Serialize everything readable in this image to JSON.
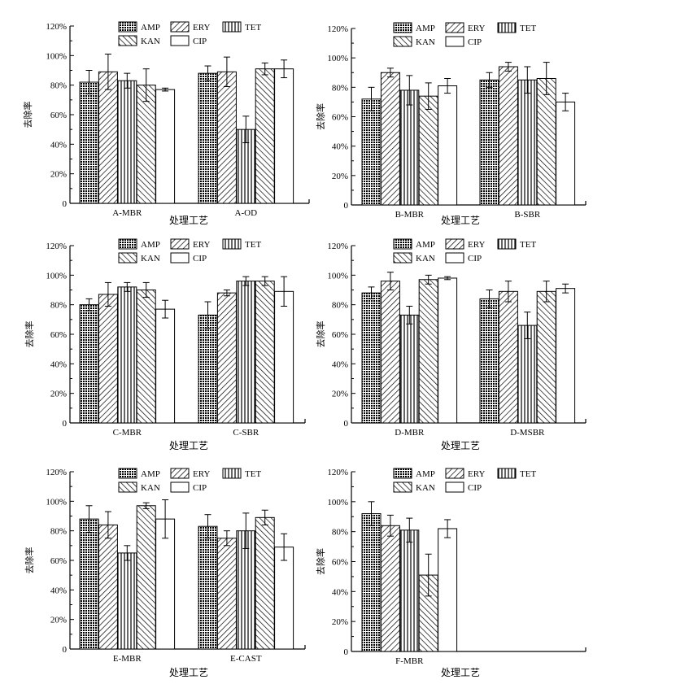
{
  "series_names": [
    "AMP",
    "ERY",
    "TET",
    "KAN",
    "CIP"
  ],
  "y_ticks": [
    "0",
    "20%",
    "40%",
    "60%",
    "80%",
    "100%",
    "120%"
  ],
  "chart_data": [
    {
      "type": "bar",
      "panel": "A",
      "categories": [
        "A-MBR",
        "A-OD"
      ],
      "series": [
        {
          "name": "AMP",
          "values": [
            82,
            88
          ],
          "errors": [
            8,
            5
          ]
        },
        {
          "name": "ERY",
          "values": [
            89,
            89
          ],
          "errors": [
            12,
            10
          ]
        },
        {
          "name": "TET",
          "values": [
            83,
            50
          ],
          "errors": [
            5,
            9
          ]
        },
        {
          "name": "KAN",
          "values": [
            80,
            91
          ],
          "errors": [
            11,
            4
          ]
        },
        {
          "name": "CIP",
          "values": [
            77,
            91
          ],
          "errors": [
            1,
            6
          ]
        }
      ],
      "xlabel": "处理工艺",
      "ylabel": "去除率",
      "ylim": [
        0,
        120
      ]
    },
    {
      "type": "bar",
      "panel": "B",
      "categories": [
        "B-MBR",
        "B-SBR"
      ],
      "series": [
        {
          "name": "AMP",
          "values": [
            72,
            85
          ],
          "errors": [
            8,
            5
          ]
        },
        {
          "name": "ERY",
          "values": [
            90,
            94
          ],
          "errors": [
            3,
            3
          ]
        },
        {
          "name": "TET",
          "values": [
            78,
            85
          ],
          "errors": [
            10,
            9
          ]
        },
        {
          "name": "KAN",
          "values": [
            74,
            86
          ],
          "errors": [
            9,
            11
          ]
        },
        {
          "name": "CIP",
          "values": [
            81,
            70
          ],
          "errors": [
            5,
            6
          ]
        }
      ],
      "xlabel": "处理工艺",
      "ylabel": "去除率",
      "ylim": [
        0,
        120
      ]
    },
    {
      "type": "bar",
      "panel": "C",
      "categories": [
        "C-MBR",
        "C-SBR"
      ],
      "series": [
        {
          "name": "AMP",
          "values": [
            80,
            73
          ],
          "errors": [
            4,
            9
          ]
        },
        {
          "name": "ERY",
          "values": [
            87,
            88
          ],
          "errors": [
            8,
            2
          ]
        },
        {
          "name": "TET",
          "values": [
            92,
            96
          ],
          "errors": [
            3,
            3
          ]
        },
        {
          "name": "KAN",
          "values": [
            90,
            96
          ],
          "errors": [
            5,
            3
          ]
        },
        {
          "name": "CIP",
          "values": [
            77,
            89
          ],
          "errors": [
            6,
            10
          ]
        }
      ],
      "xlabel": "处理工艺",
      "ylabel": "去除率",
      "ylim": [
        0,
        120
      ]
    },
    {
      "type": "bar",
      "panel": "D",
      "categories": [
        "D-MBR",
        "D-MSBR"
      ],
      "series": [
        {
          "name": "AMP",
          "values": [
            88,
            84
          ],
          "errors": [
            4,
            6
          ]
        },
        {
          "name": "ERY",
          "values": [
            96,
            89
          ],
          "errors": [
            6,
            7
          ]
        },
        {
          "name": "TET",
          "values": [
            73,
            66
          ],
          "errors": [
            6,
            9
          ]
        },
        {
          "name": "KAN",
          "values": [
            97,
            89
          ],
          "errors": [
            3,
            7
          ]
        },
        {
          "name": "CIP",
          "values": [
            98,
            91
          ],
          "errors": [
            1,
            3
          ]
        }
      ],
      "xlabel": "处理工艺",
      "ylabel": "去除率",
      "ylim": [
        0,
        120
      ]
    },
    {
      "type": "bar",
      "panel": "E",
      "categories": [
        "E-MBR",
        "E-CAST"
      ],
      "series": [
        {
          "name": "AMP",
          "values": [
            88,
            83
          ],
          "errors": [
            9,
            8
          ]
        },
        {
          "name": "ERY",
          "values": [
            84,
            75
          ],
          "errors": [
            9,
            5
          ]
        },
        {
          "name": "TET",
          "values": [
            65,
            80
          ],
          "errors": [
            5,
            12
          ]
        },
        {
          "name": "KAN",
          "values": [
            97,
            89
          ],
          "errors": [
            2,
            5
          ]
        },
        {
          "name": "CIP",
          "values": [
            88,
            69
          ],
          "errors": [
            13,
            9
          ]
        }
      ],
      "xlabel": "处理工艺",
      "ylabel": "去除率",
      "ylim": [
        0,
        120
      ]
    },
    {
      "type": "bar",
      "panel": "F",
      "categories": [
        "F-MBR"
      ],
      "series": [
        {
          "name": "AMP",
          "values": [
            92
          ],
          "errors": [
            8
          ]
        },
        {
          "name": "ERY",
          "values": [
            84
          ],
          "errors": [
            7
          ]
        },
        {
          "name": "TET",
          "values": [
            81
          ],
          "errors": [
            8
          ]
        },
        {
          "name": "KAN",
          "values": [
            51
          ],
          "errors": [
            14
          ]
        },
        {
          "name": "CIP",
          "values": [
            82
          ],
          "errors": [
            6
          ]
        }
      ],
      "xlabel": "处理工艺",
      "ylabel": "去除率",
      "ylim": [
        0,
        120
      ]
    }
  ]
}
